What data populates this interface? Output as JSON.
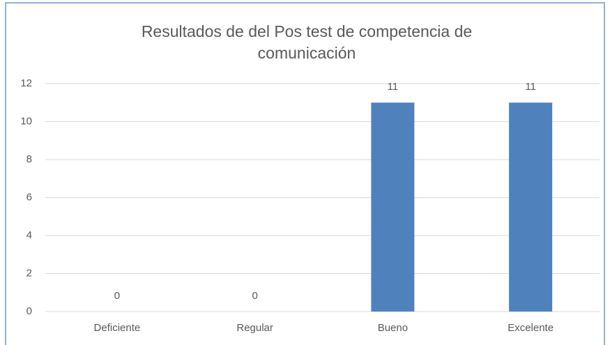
{
  "chart_data": {
    "type": "bar",
    "title": "Resultados de del Pos test de competencia de comunicación",
    "categories": [
      "Deficiente",
      "Regular",
      "Bueno",
      "Excelente"
    ],
    "values": [
      0,
      0,
      11,
      11
    ],
    "color": "#4f81bd",
    "ylim": [
      0,
      12
    ],
    "yticks": [
      0,
      2,
      4,
      6,
      8,
      10,
      12
    ],
    "grid": true
  }
}
